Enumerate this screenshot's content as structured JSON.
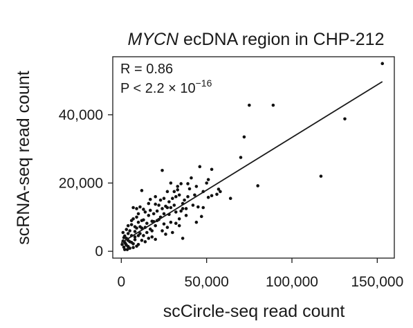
{
  "chart_data": {
    "type": "scatter",
    "title_italic": "MYCN",
    "title_rest": " ecDNA region in CHP-212",
    "xlabel": "scCircle-seq read count",
    "ylabel": "scRNA-seq read count",
    "xlim": [
      -5000,
      160000
    ],
    "ylim": [
      -2000,
      57000
    ],
    "xticks": [
      0,
      50000,
      100000,
      150000
    ],
    "xtick_labels": [
      "0",
      "50,000",
      "100,000",
      "150,000"
    ],
    "yticks": [
      0,
      20000,
      40000
    ],
    "ytick_labels": [
      "0",
      "20,000",
      "40,000"
    ],
    "grid": false,
    "annotations": {
      "r_label": "R = 0.86",
      "p_prefix": "P < 2.2 × 10",
      "p_exponent": "−16"
    },
    "fit_line": {
      "x": [
        0,
        153000
      ],
      "y": [
        2500,
        49700
      ]
    },
    "series": [
      {
        "points": [
          [
            153000,
            55000
          ],
          [
            131000,
            38800
          ],
          [
            117000,
            22000
          ],
          [
            89000,
            42800
          ],
          [
            80000,
            19200
          ],
          [
            75000,
            42800
          ],
          [
            72000,
            33500
          ],
          [
            70000,
            27500
          ],
          [
            64000,
            15500
          ],
          [
            57000,
            18200
          ],
          [
            58000,
            17500
          ],
          [
            56000,
            16700
          ],
          [
            53000,
            16300
          ],
          [
            53000,
            24000
          ],
          [
            51000,
            21000
          ],
          [
            51000,
            15800
          ],
          [
            50000,
            20000
          ],
          [
            48000,
            17500
          ],
          [
            48000,
            12800
          ],
          [
            47000,
            10200
          ],
          [
            46000,
            24800
          ],
          [
            45000,
            13000
          ],
          [
            44000,
            19000
          ],
          [
            43000,
            16500
          ],
          [
            41000,
            21500
          ],
          [
            40000,
            18300
          ],
          [
            39000,
            19800
          ],
          [
            38000,
            10500
          ],
          [
            37000,
            15000
          ],
          [
            36000,
            12500
          ],
          [
            35000,
            11800
          ],
          [
            34000,
            16500
          ],
          [
            34000,
            9500
          ],
          [
            33000,
            19000
          ],
          [
            32000,
            11500
          ],
          [
            32000,
            16000
          ],
          [
            31000,
            17500
          ],
          [
            30000,
            15500
          ],
          [
            29000,
            12800
          ],
          [
            29000,
            8500
          ],
          [
            28000,
            10800
          ],
          [
            27000,
            17500
          ],
          [
            26000,
            13200
          ],
          [
            25000,
            8000
          ],
          [
            24000,
            23700
          ],
          [
            24000,
            12500
          ],
          [
            23000,
            15000
          ],
          [
            22000,
            9300
          ],
          [
            21000,
            11800
          ],
          [
            20000,
            7500
          ],
          [
            20000,
            13800
          ],
          [
            19000,
            11000
          ],
          [
            18000,
            8800
          ],
          [
            17000,
            6500
          ],
          [
            16000,
            14000
          ],
          [
            16000,
            10500
          ],
          [
            15000,
            8200
          ],
          [
            14000,
            11500
          ],
          [
            13000,
            9200
          ],
          [
            12000,
            17800
          ],
          [
            12000,
            6800
          ],
          [
            11000,
            13000
          ],
          [
            11000,
            5200
          ],
          [
            10000,
            8500
          ],
          [
            10000,
            4600
          ],
          [
            9000,
            10000
          ],
          [
            9000,
            6800
          ],
          [
            8000,
            3400
          ],
          [
            8000,
            5800
          ],
          [
            7000,
            12800
          ],
          [
            7000,
            2200
          ],
          [
            6000,
            4600
          ],
          [
            6000,
            7800
          ],
          [
            5000,
            6000
          ],
          [
            5000,
            2800
          ],
          [
            4000,
            5200
          ],
          [
            4000,
            1400
          ],
          [
            3000,
            3800
          ],
          [
            3000,
            6400
          ],
          [
            2500,
            2200
          ],
          [
            2000,
            4500
          ],
          [
            1500,
            1200
          ],
          [
            1000,
            3000
          ],
          [
            500,
            2000
          ],
          [
            36000,
            14000
          ],
          [
            42000,
            13500
          ],
          [
            27000,
            12800
          ],
          [
            22000,
            13500
          ],
          [
            19000,
            8700
          ],
          [
            17000,
            12000
          ],
          [
            15000,
            5500
          ],
          [
            13000,
            4600
          ],
          [
            11000,
            7200
          ],
          [
            8000,
            4200
          ],
          [
            6000,
            2600
          ],
          [
            4000,
            3200
          ],
          [
            3000,
            1800
          ],
          [
            2000,
            2600
          ],
          [
            36000,
            3800
          ],
          [
            34000,
            7500
          ],
          [
            30000,
            5500
          ],
          [
            26000,
            5000
          ],
          [
            24000,
            6000
          ],
          [
            20000,
            3500
          ],
          [
            18000,
            4200
          ],
          [
            16000,
            3800
          ],
          [
            14000,
            2800
          ],
          [
            12000,
            3200
          ],
          [
            10000,
            2000
          ],
          [
            9000,
            1500
          ],
          [
            7000,
            1100
          ],
          [
            5000,
            900
          ],
          [
            2000,
            500
          ],
          [
            29000,
            20000
          ],
          [
            33000,
            18000
          ],
          [
            39000,
            16000
          ],
          [
            35000,
            19800
          ],
          [
            31000,
            13500
          ],
          [
            25000,
            11000
          ],
          [
            23000,
            10000
          ],
          [
            21000,
            9000
          ],
          [
            18000,
            6000
          ],
          [
            14000,
            7000
          ],
          [
            12000,
            9000
          ],
          [
            10000,
            11000
          ],
          [
            8000,
            7200
          ],
          [
            6000,
            9000
          ],
          [
            4000,
            7500
          ],
          [
            1500,
            4000
          ],
          [
            1000,
            5500
          ],
          [
            3500,
            500
          ],
          [
            27000,
            7000
          ],
          [
            38000,
            12500
          ],
          [
            44000,
            8500
          ],
          [
            32000,
            8200
          ],
          [
            28000,
            14500
          ],
          [
            25000,
            15500
          ],
          [
            20000,
            16000
          ],
          [
            17000,
            15200
          ],
          [
            13000,
            12300
          ],
          [
            9000,
            12500
          ],
          [
            7000,
            9500
          ]
        ]
      }
    ]
  }
}
